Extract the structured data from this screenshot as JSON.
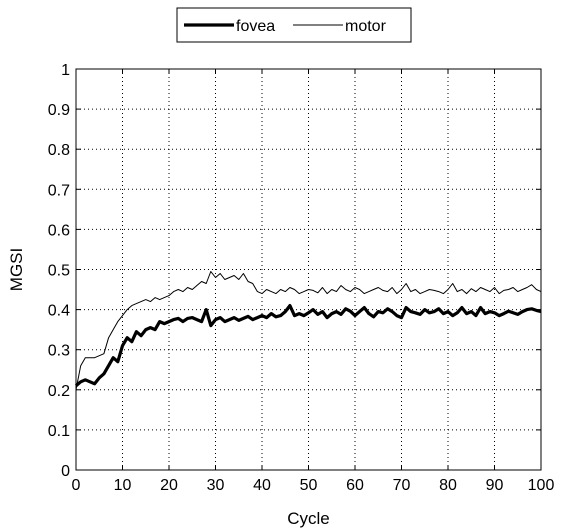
{
  "chart_data": {
    "type": "line",
    "xlabel": "Cycle",
    "ylabel": "MGSI",
    "xlim": [
      0,
      100
    ],
    "ylim": [
      0,
      1
    ],
    "xticks": [
      "0",
      "10",
      "20",
      "30",
      "40",
      "50",
      "60",
      "70",
      "80",
      "90",
      "100"
    ],
    "yticks": [
      "0",
      "0.1",
      "0.2",
      "0.3",
      "0.4",
      "0.5",
      "0.6",
      "0.7",
      "0.8",
      "0.9",
      "1"
    ],
    "grid": true,
    "grid_style": "dotted",
    "legend_position": "top-center",
    "x": [
      0,
      1,
      2,
      3,
      4,
      5,
      6,
      7,
      8,
      9,
      10,
      11,
      12,
      13,
      14,
      15,
      16,
      17,
      18,
      19,
      20,
      21,
      22,
      23,
      24,
      25,
      26,
      27,
      28,
      29,
      30,
      31,
      32,
      33,
      34,
      35,
      36,
      37,
      38,
      39,
      40,
      41,
      42,
      43,
      44,
      45,
      46,
      47,
      48,
      49,
      50,
      51,
      52,
      53,
      54,
      55,
      56,
      57,
      58,
      59,
      60,
      61,
      62,
      63,
      64,
      65,
      66,
      67,
      68,
      69,
      70,
      71,
      72,
      73,
      74,
      75,
      76,
      77,
      78,
      79,
      80,
      81,
      82,
      83,
      84,
      85,
      86,
      87,
      88,
      89,
      90,
      91,
      92,
      93,
      94,
      95,
      96,
      97,
      98,
      99,
      100
    ],
    "series": [
      {
        "name": "fovea",
        "color": "#000000",
        "line_width": "thick",
        "values": [
          0.21,
          0.22,
          0.225,
          0.22,
          0.215,
          0.23,
          0.24,
          0.26,
          0.28,
          0.27,
          0.31,
          0.33,
          0.32,
          0.345,
          0.335,
          0.35,
          0.355,
          0.35,
          0.37,
          0.365,
          0.37,
          0.375,
          0.378,
          0.37,
          0.378,
          0.38,
          0.375,
          0.37,
          0.4,
          0.36,
          0.375,
          0.38,
          0.37,
          0.375,
          0.38,
          0.373,
          0.378,
          0.383,
          0.375,
          0.38,
          0.385,
          0.38,
          0.39,
          0.382,
          0.385,
          0.395,
          0.41,
          0.385,
          0.39,
          0.385,
          0.392,
          0.4,
          0.388,
          0.395,
          0.38,
          0.39,
          0.395,
          0.388,
          0.402,
          0.396,
          0.385,
          0.395,
          0.405,
          0.39,
          0.382,
          0.395,
          0.392,
          0.402,
          0.395,
          0.385,
          0.38,
          0.405,
          0.395,
          0.392,
          0.388,
          0.4,
          0.392,
          0.395,
          0.402,
          0.39,
          0.395,
          0.385,
          0.392,
          0.405,
          0.39,
          0.395,
          0.385,
          0.405,
          0.39,
          0.395,
          0.392,
          0.385,
          0.39,
          0.396,
          0.392,
          0.388,
          0.395,
          0.4,
          0.402,
          0.398,
          0.395
        ]
      },
      {
        "name": "motor",
        "color": "#000000",
        "line_width": "thin",
        "values": [
          0.2,
          0.26,
          0.28,
          0.28,
          0.28,
          0.285,
          0.29,
          0.33,
          0.35,
          0.37,
          0.385,
          0.4,
          0.41,
          0.415,
          0.42,
          0.425,
          0.42,
          0.43,
          0.425,
          0.43,
          0.435,
          0.445,
          0.45,
          0.445,
          0.455,
          0.45,
          0.46,
          0.47,
          0.465,
          0.495,
          0.48,
          0.49,
          0.475,
          0.48,
          0.485,
          0.475,
          0.49,
          0.47,
          0.465,
          0.445,
          0.44,
          0.45,
          0.445,
          0.44,
          0.45,
          0.445,
          0.455,
          0.45,
          0.44,
          0.445,
          0.45,
          0.448,
          0.442,
          0.455,
          0.44,
          0.45,
          0.445,
          0.46,
          0.45,
          0.445,
          0.455,
          0.45,
          0.44,
          0.445,
          0.45,
          0.455,
          0.448,
          0.445,
          0.455,
          0.44,
          0.45,
          0.465,
          0.445,
          0.45,
          0.44,
          0.445,
          0.45,
          0.448,
          0.445,
          0.44,
          0.45,
          0.465,
          0.445,
          0.45,
          0.44,
          0.452,
          0.445,
          0.455,
          0.45,
          0.445,
          0.455,
          0.44,
          0.448,
          0.45,
          0.455,
          0.445,
          0.45,
          0.455,
          0.462,
          0.45,
          0.445
        ]
      }
    ]
  }
}
